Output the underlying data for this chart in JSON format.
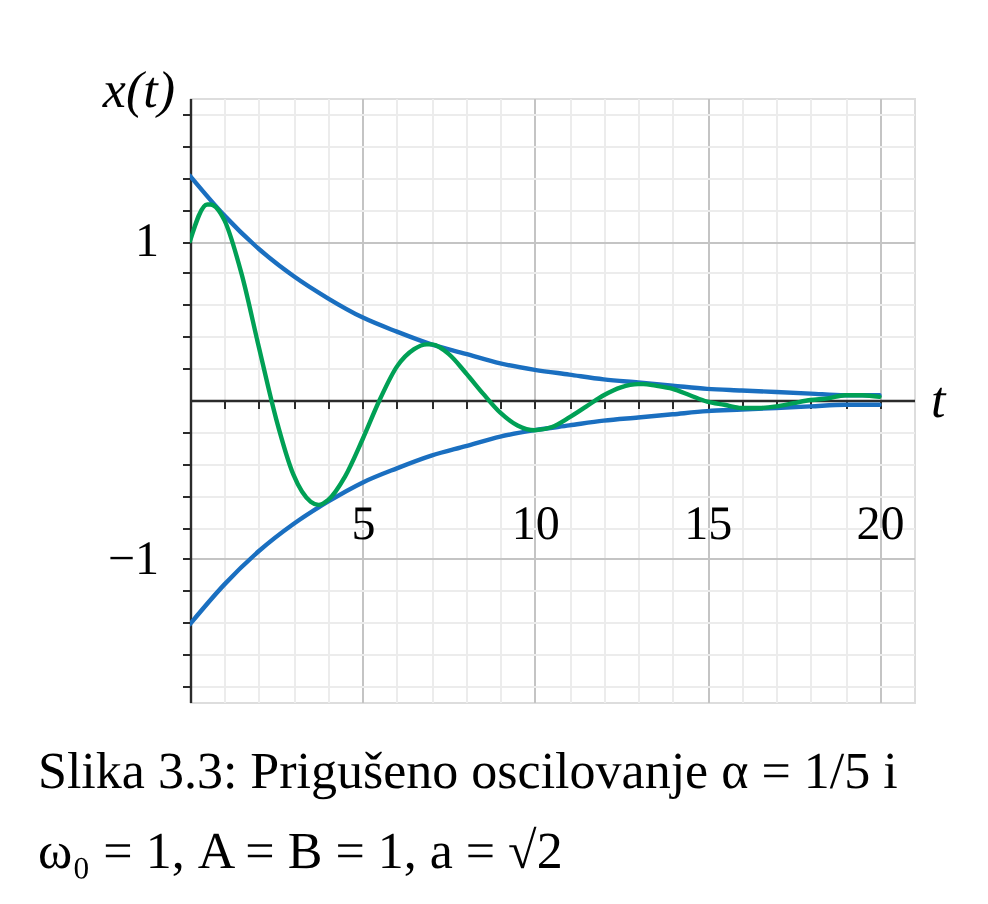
{
  "chart_data": {
    "type": "line",
    "xlabel": "t",
    "ylabel": "x(t)",
    "annotations": [
      "Slika 3.3: Prigušeno oscilovanje α = 1/5 i ω₀ = 1, A = B = 1, a = √2"
    ],
    "xlim": [
      0,
      21
    ],
    "ylim": [
      -1.9,
      1.9
    ],
    "xticks": [
      {
        "value": 1,
        "label": null
      },
      {
        "value": 2,
        "label": null
      },
      {
        "value": 3,
        "label": null
      },
      {
        "value": 4,
        "label": null
      },
      5,
      {
        "value": 6,
        "label": null
      },
      {
        "value": 7,
        "label": null
      },
      {
        "value": 8,
        "label": null
      },
      {
        "value": 9,
        "label": null
      },
      10,
      {
        "value": 11,
        "label": null
      },
      {
        "value": 12,
        "label": null
      },
      {
        "value": 13,
        "label": null
      },
      {
        "value": 14,
        "label": null
      },
      15,
      {
        "value": 16,
        "label": null
      },
      {
        "value": 17,
        "label": null
      },
      {
        "value": 18,
        "label": null
      },
      {
        "value": 19,
        "label": null
      },
      20
    ],
    "yticks": [
      {
        "value": -1.8,
        "label": null
      },
      {
        "value": -1.6,
        "label": null
      },
      {
        "value": -1.4,
        "label": null
      },
      {
        "value": -1.2,
        "label": null
      },
      {
        "value": -1,
        "label": "−1"
      },
      {
        "value": -0.8,
        "label": null
      },
      {
        "value": -0.6,
        "label": null
      },
      {
        "value": -0.4,
        "label": null
      },
      {
        "value": -0.2,
        "label": null
      },
      {
        "value": 0.2,
        "label": null
      },
      {
        "value": 0.4,
        "label": null
      },
      {
        "value": 0.6,
        "label": null
      },
      {
        "value": 0.8,
        "label": null
      },
      1,
      {
        "value": 1.2,
        "label": null
      },
      {
        "value": 1.4,
        "label": null
      },
      {
        "value": 1.6,
        "label": null
      },
      {
        "value": 1.8,
        "label": null
      }
    ],
    "grid": true,
    "line_style": "solid",
    "x": [
      0,
      1,
      2,
      3,
      4,
      5,
      6,
      7,
      8,
      9,
      10,
      11,
      12,
      13,
      14,
      15,
      16,
      17,
      18,
      19,
      20
    ],
    "series": [
      {
        "color": "#1a6fc0",
        "values": [
          1.41,
          1.16,
          0.95,
          0.78,
          0.64,
          0.52,
          0.43,
          0.35,
          0.29,
          0.23,
          0.19,
          0.16,
          0.13,
          0.11,
          0.09,
          0.07,
          0.06,
          0.05,
          0.04,
          0.03,
          0.03
        ]
      },
      {
        "color": "#1a6fc0",
        "values": [
          -1.41,
          -1.16,
          -0.95,
          -0.78,
          -0.64,
          -0.52,
          -0.43,
          -0.35,
          -0.29,
          -0.23,
          -0.19,
          -0.16,
          -0.13,
          -0.11,
          -0.09,
          -0.07,
          -0.06,
          -0.05,
          -0.04,
          -0.03,
          -0.03
        ]
      },
      {
        "color": "#00a055",
        "x": [
          0,
          0.5,
          0.59,
          1,
          1.5,
          2,
          2.5,
          3,
          3.5,
          3.73,
          4,
          4.5,
          5,
          5.5,
          6,
          6.5,
          6.87,
          7,
          7.5,
          8,
          8.5,
          9,
          9.5,
          10,
          10.5,
          11,
          11.5,
          12,
          12.5,
          13,
          13.15,
          13.5,
          14,
          14.5,
          15,
          15.5,
          16,
          16.3,
          16.5,
          17,
          17.5,
          18,
          18.5,
          19,
          19.44,
          19.5,
          20
        ],
        "values": [
          1,
          1.23,
          1.23,
          1.13,
          0.79,
          0.33,
          -0.12,
          -0.47,
          -0.64,
          -0.66,
          -0.63,
          -0.48,
          -0.25,
          0,
          0.21,
          0.32,
          0.35,
          0.35,
          0.29,
          0.17,
          0.04,
          -0.08,
          -0.16,
          -0.19,
          -0.17,
          -0.11,
          -0.04,
          0.03,
          0.08,
          0.1,
          0.1,
          0.09,
          0.07,
          0.03,
          -0.01,
          -0.03,
          -0.05,
          -0.05,
          -0.05,
          -0.04,
          -0.02,
          0,
          0.01,
          0.03,
          0.03,
          0.03,
          0.02
        ]
      }
    ]
  }
}
